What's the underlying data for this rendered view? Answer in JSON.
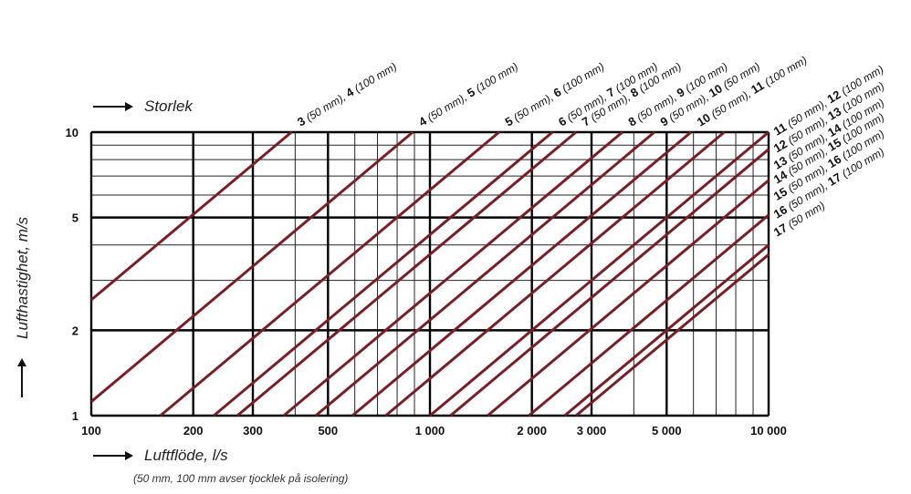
{
  "chart_data": {
    "type": "line",
    "x_scale": "log",
    "y_scale": "log",
    "xlim": [
      100,
      10000
    ],
    "ylim": [
      1,
      10
    ],
    "xlabel": "Luftflöde, l/s",
    "ylabel": "Lufthastighet, m/s",
    "size_axis_label": "Storlek",
    "footnote": "(50 mm, 100 mm avser tjocklek på isolering)",
    "x_ticks": [
      {
        "value": 100,
        "label": "100"
      },
      {
        "value": 200,
        "label": "200"
      },
      {
        "value": 300,
        "label": "300"
      },
      {
        "value": 500,
        "label": "500"
      },
      {
        "value": 1000,
        "label": "1 000"
      },
      {
        "value": 2000,
        "label": "2 000"
      },
      {
        "value": 3000,
        "label": "3 000"
      },
      {
        "value": 5000,
        "label": "5 000"
      },
      {
        "value": 10000,
        "label": "10 000"
      }
    ],
    "y_ticks": [
      {
        "value": 1,
        "label": "1"
      },
      {
        "value": 2,
        "label": "2"
      },
      {
        "value": 5,
        "label": "5"
      },
      {
        "value": 10,
        "label": "10"
      }
    ],
    "grid": true,
    "line_color": "#7a1e26",
    "series": [
      {
        "x": [
          100,
          390
        ],
        "y": [
          2.56,
          10
        ]
      },
      {
        "x": [
          100,
          890
        ],
        "y": [
          1.12,
          10
        ]
      },
      {
        "x": [
          160,
          1600
        ],
        "y": [
          1,
          10
        ]
      },
      {
        "x": [
          230,
          2300
        ],
        "y": [
          1,
          10
        ]
      },
      {
        "x": [
          270,
          2700
        ],
        "y": [
          1,
          10
        ]
      },
      {
        "x": [
          370,
          3700
        ],
        "y": [
          1,
          10
        ]
      },
      {
        "x": [
          460,
          4600
        ],
        "y": [
          1,
          10
        ]
      },
      {
        "x": [
          590,
          5900
        ],
        "y": [
          1,
          10
        ]
      },
      {
        "x": [
          740,
          7400
        ],
        "y": [
          1,
          10
        ]
      },
      {
        "x": [
          1000,
          10000
        ],
        "y": [
          1,
          10
        ]
      },
      {
        "x": [
          1150,
          10000
        ],
        "y": [
          1,
          8.7
        ]
      },
      {
        "x": [
          1480,
          10000
        ],
        "y": [
          1,
          6.76
        ]
      },
      {
        "x": [
          1960,
          10000
        ],
        "y": [
          1,
          5.1
        ]
      },
      {
        "x": [
          2500,
          10000
        ],
        "y": [
          1,
          4.0
        ]
      },
      {
        "x": [
          2700,
          10000
        ],
        "y": [
          1,
          3.7
        ]
      }
    ],
    "top_labels": [
      {
        "x_end": 390,
        "parts": [
          {
            "n": "3",
            "t": " (50 mm), "
          },
          {
            "n": "4",
            "t": " (100 mm)"
          }
        ]
      },
      {
        "x_end": 890,
        "parts": [
          {
            "n": "4",
            "t": " (50 mm), "
          },
          {
            "n": "5",
            "t": " (100 mm)"
          }
        ]
      },
      {
        "x_end": 1600,
        "parts": [
          {
            "n": "5",
            "t": " (50 mm), "
          },
          {
            "n": "6",
            "t": " (100 mm)"
          }
        ]
      },
      {
        "x_end": 2300,
        "parts": [
          {
            "n": "6",
            "t": " (50 mm), "
          },
          {
            "n": "7",
            "t": " (100 mm)"
          }
        ]
      },
      {
        "x_end": 2700,
        "parts": [
          {
            "n": "7",
            "t": " (50 mm), "
          },
          {
            "n": "8",
            "t": " (100 mm)"
          }
        ]
      },
      {
        "x_end": 3700,
        "parts": [
          {
            "n": "8",
            "t": " (50 mm), "
          },
          {
            "n": "9",
            "t": " (100 mm)"
          }
        ]
      },
      {
        "x_end": 4600,
        "parts": [
          {
            "n": "9",
            "t": " (50 mm), "
          },
          {
            "n": "10",
            "t": " (50 mm)"
          }
        ]
      },
      {
        "x_end": 5900,
        "parts": [
          {
            "n": "10",
            "t": " (50 mm), "
          },
          {
            "n": "11",
            "t": " (100 mm)"
          }
        ]
      }
    ],
    "right_labels": [
      {
        "y_end": 10,
        "parts": [
          {
            "n": "11",
            "t": " (50 mm), "
          },
          {
            "n": "12",
            "t": " (100 mm)"
          }
        ]
      },
      {
        "y_end": 8.7,
        "parts": [
          {
            "n": "12",
            "t": " (50 mm), "
          },
          {
            "n": "13",
            "t": " (100 mm)"
          }
        ]
      },
      {
        "y_end": 7.6,
        "parts": [
          {
            "n": "13",
            "t": " (50 mm), "
          },
          {
            "n": "14",
            "t": " (100 mm)"
          }
        ]
      },
      {
        "y_end": 6.76,
        "parts": [
          {
            "n": "14",
            "t": " (50 mm), "
          },
          {
            "n": "15",
            "t": " (100 mm)"
          }
        ]
      },
      {
        "y_end": 5.9,
        "parts": [
          {
            "n": "15",
            "t": " (50 mm), "
          },
          {
            "n": "16",
            "t": " (100 mm)"
          }
        ]
      },
      {
        "y_end": 5.1,
        "parts": [
          {
            "n": "16",
            "t": " (50 mm), "
          },
          {
            "n": "17",
            "t": " (100 mm)"
          }
        ]
      },
      {
        "y_end": 4.4,
        "parts": [
          {
            "n": "17",
            "t": " (50 mm)"
          }
        ]
      }
    ]
  }
}
